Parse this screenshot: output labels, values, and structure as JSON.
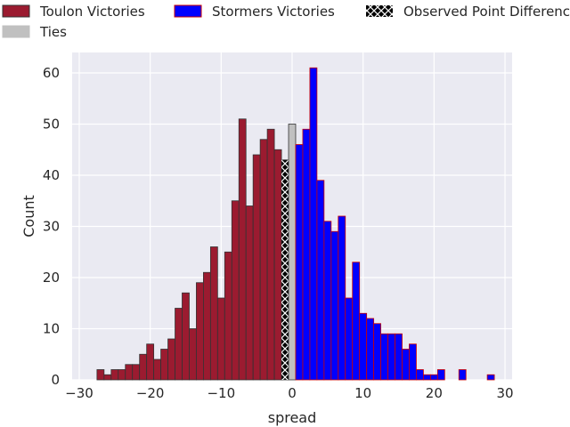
{
  "chart_data": {
    "type": "bar",
    "title": "",
    "xlabel": "spread",
    "ylabel": "Count",
    "xlim": [
      -31,
      31
    ],
    "ylim": [
      0,
      64
    ],
    "xticks": [
      -30,
      -20,
      -10,
      0,
      10,
      20,
      30
    ],
    "xtick_labels": [
      "−30",
      "−20",
      "−10",
      "0",
      "10",
      "20",
      "30"
    ],
    "yticks": [
      0,
      10,
      20,
      30,
      40,
      50,
      60
    ],
    "ytick_labels": [
      "0",
      "10",
      "20",
      "30",
      "40",
      "50",
      "60"
    ],
    "grid": true,
    "legend_position": "top",
    "colors": {
      "toulon": "#9b1b30",
      "stormers": "#0000ff",
      "stormers_edge": "#cc0000",
      "ties": "#c0c0c0",
      "observed": "#000000",
      "background": "#eaeaf2",
      "grid": "#ffffff"
    },
    "legend": [
      {
        "label": "Toulon Victories",
        "key": "toulon"
      },
      {
        "label": "Stormers Victories",
        "key": "stormers"
      },
      {
        "label": "Observed Point Difference",
        "key": "observed"
      },
      {
        "label": "Ties",
        "key": "ties"
      }
    ],
    "series": [
      {
        "name": "Toulon Victories",
        "key": "toulon",
        "x": [
          -27,
          -26,
          -25,
          -24,
          -23,
          -22,
          -21,
          -20,
          -19,
          -18,
          -17,
          -16,
          -15,
          -14,
          -13,
          -12,
          -11,
          -10,
          -9,
          -8,
          -7,
          -6,
          -5,
          -4,
          -3,
          -2,
          -1
        ],
        "values": [
          2,
          1,
          2,
          2,
          3,
          3,
          5,
          7,
          4,
          6,
          8,
          14,
          17,
          10,
          19,
          21,
          26,
          16,
          25,
          35,
          51,
          34,
          44,
          47,
          49,
          45,
          43
        ]
      },
      {
        "name": "Ties",
        "key": "ties",
        "x": [
          0
        ],
        "values": [
          50
        ]
      },
      {
        "name": "Stormers Victories",
        "key": "stormers",
        "x": [
          1,
          2,
          3,
          4,
          5,
          6,
          7,
          8,
          9,
          10,
          11,
          12,
          13,
          14,
          15,
          16,
          17,
          18,
          19,
          20,
          21,
          22,
          23,
          24,
          25,
          26,
          27,
          28
        ],
        "values": [
          46,
          49,
          61,
          39,
          31,
          29,
          32,
          16,
          23,
          13,
          12,
          11,
          9,
          9,
          9,
          6,
          7,
          2,
          1,
          1,
          2,
          0,
          0,
          2,
          0,
          0,
          0,
          1
        ]
      }
    ],
    "observed_point_difference": {
      "x": -1,
      "value": 43
    }
  }
}
